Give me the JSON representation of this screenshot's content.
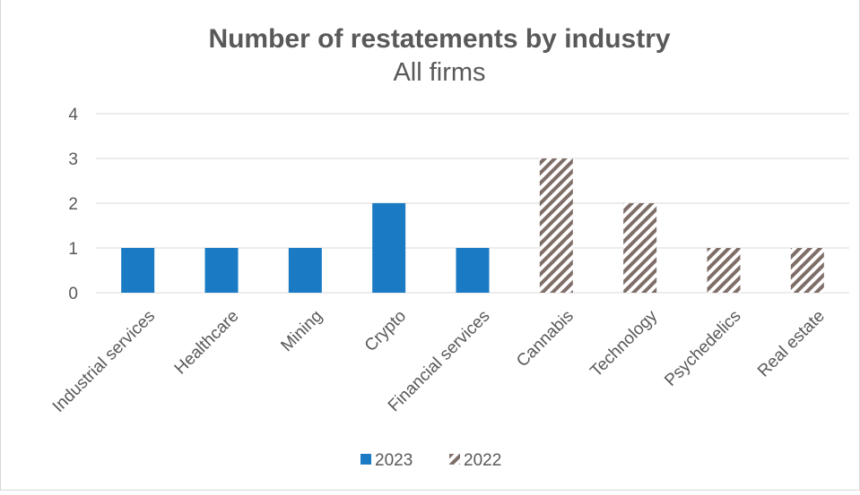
{
  "chart_data": {
    "type": "bar",
    "title": "Number of restatements by industry",
    "subtitle": "All firms",
    "xlabel": "",
    "ylabel": "",
    "categories": [
      "Industrial services",
      "Healthcare",
      "Mining",
      "Crypto",
      "Financial services",
      "Cannabis",
      "Technology",
      "Psychedelics",
      "Real estate"
    ],
    "series": [
      {
        "name": "2023",
        "values": [
          1,
          1,
          1,
          2,
          1,
          0,
          0,
          0,
          0
        ],
        "color": "#1a7bc4",
        "pattern": "solid"
      },
      {
        "name": "2022",
        "values": [
          0,
          0,
          0,
          0,
          0,
          3,
          2,
          1,
          1
        ],
        "color": "#7f6e68",
        "pattern": "diagonal-stripes"
      }
    ],
    "ylim": [
      0,
      4
    ],
    "yticks": [
      "0",
      "1",
      "2",
      "3",
      "4"
    ],
    "grid": true,
    "legend": "bottom"
  }
}
